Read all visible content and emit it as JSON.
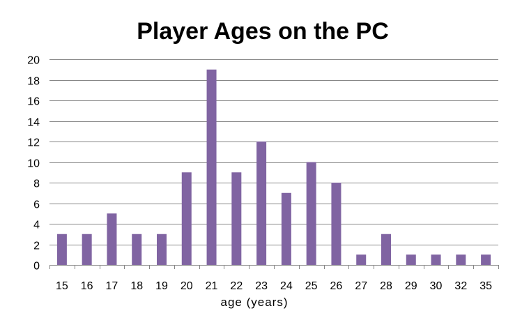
{
  "chart_data": {
    "type": "bar",
    "title": "Player Ages on the PC",
    "xlabel": "age (years)",
    "ylabel": "",
    "categories": [
      "15",
      "16",
      "17",
      "18",
      "19",
      "20",
      "21",
      "22",
      "23",
      "24",
      "25",
      "26",
      "27",
      "28",
      "29",
      "30",
      "32",
      "35"
    ],
    "values": [
      3,
      3,
      5,
      3,
      3,
      9,
      19,
      9,
      12,
      7,
      10,
      8,
      1,
      3,
      1,
      1,
      1,
      1
    ],
    "ylim": [
      0,
      20
    ],
    "yticks": [
      "0",
      "2",
      "4",
      "6",
      "8",
      "10",
      "12",
      "14",
      "16",
      "18",
      "20"
    ],
    "grid": true,
    "legend": "none",
    "bar_color": "#8064A2",
    "grid_color": "#878787"
  }
}
